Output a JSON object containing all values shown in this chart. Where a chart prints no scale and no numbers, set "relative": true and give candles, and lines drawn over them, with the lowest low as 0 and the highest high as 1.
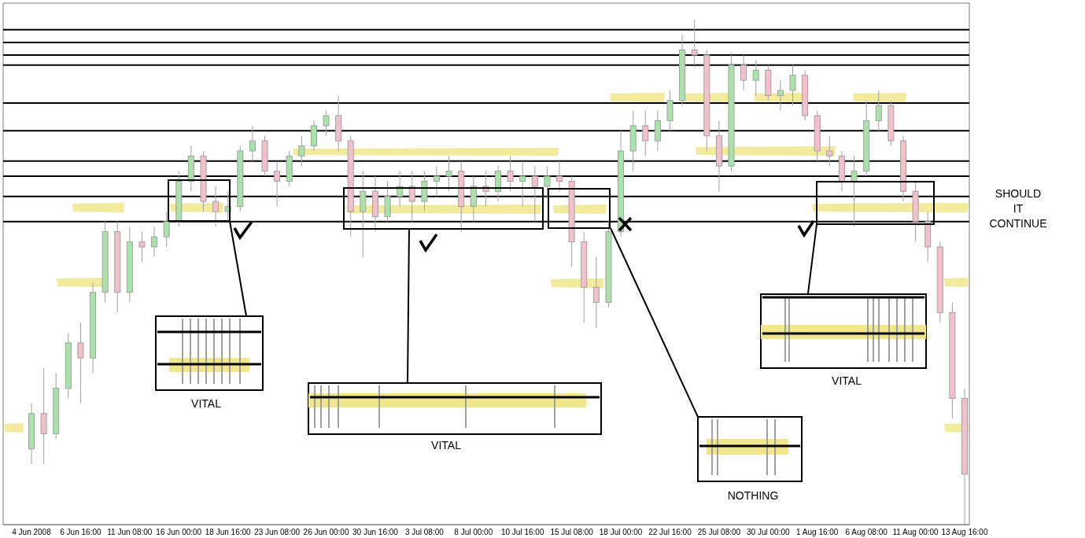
{
  "chart_data": {
    "type": "candlestick",
    "relative": true,
    "categories": [
      "4 Jun 2008",
      null,
      null,
      null,
      "6 Jun 16:00",
      null,
      null,
      null,
      "11 Jun 08:00",
      null,
      null,
      null,
      "16 Jun 00:00",
      null,
      null,
      null,
      "18 Jun 16:00",
      null,
      null,
      null,
      "23 Jun 08:00",
      null,
      null,
      null,
      "26 Jun 00:00",
      null,
      null,
      null,
      "30 Jun 16:00",
      null,
      null,
      null,
      "3 Jul 08:00",
      null,
      null,
      null,
      "8 Jul 00:00",
      null,
      null,
      null,
      "10 Jul 16:00",
      null,
      null,
      null,
      "15 Jul 08:00",
      null,
      null,
      null,
      "18 Jul 00:00",
      null,
      null,
      null,
      "22 Jul 16:00",
      null,
      null,
      null,
      "25 Jul 08:00",
      null,
      null,
      null,
      "30 Jul 00:00",
      null,
      null,
      null,
      "1 Aug 16:00",
      null,
      null,
      null,
      "6 Aug 08:00",
      null,
      null,
      null,
      "11 Aug 00:00",
      null,
      null,
      null,
      "13 Aug 16:00"
    ],
    "ohlc": [
      [
        0.15,
        0.24,
        0.12,
        0.22
      ],
      [
        0.22,
        0.31,
        0.12,
        0.18
      ],
      [
        0.18,
        0.3,
        0.17,
        0.27
      ],
      [
        0.27,
        0.38,
        0.25,
        0.36
      ],
      [
        0.36,
        0.4,
        0.24,
        0.33
      ],
      [
        0.33,
        0.48,
        0.3,
        0.46
      ],
      [
        0.46,
        0.6,
        0.44,
        0.58
      ],
      [
        0.58,
        0.6,
        0.42,
        0.46
      ],
      [
        0.46,
        0.59,
        0.44,
        0.56
      ],
      [
        0.56,
        0.58,
        0.52,
        0.55
      ],
      [
        0.55,
        0.59,
        0.53,
        0.57
      ],
      [
        0.57,
        0.62,
        0.55,
        0.6
      ],
      [
        0.6,
        0.7,
        0.59,
        0.68
      ],
      [
        0.68,
        0.75,
        0.66,
        0.73
      ],
      [
        0.73,
        0.74,
        0.62,
        0.64
      ],
      [
        0.64,
        0.67,
        0.59,
        0.62
      ],
      [
        0.62,
        0.66,
        0.6,
        0.63
      ],
      [
        0.63,
        0.75,
        0.62,
        0.74
      ],
      [
        0.74,
        0.79,
        0.72,
        0.76
      ],
      [
        0.76,
        0.77,
        0.69,
        0.7
      ],
      [
        0.7,
        0.72,
        0.63,
        0.68
      ],
      [
        0.68,
        0.74,
        0.67,
        0.73
      ],
      [
        0.73,
        0.77,
        0.71,
        0.75
      ],
      [
        0.75,
        0.8,
        0.74,
        0.79
      ],
      [
        0.79,
        0.82,
        0.77,
        0.81
      ],
      [
        0.81,
        0.85,
        0.74,
        0.76
      ],
      [
        0.76,
        0.77,
        0.57,
        0.62
      ],
      [
        0.62,
        0.7,
        0.53,
        0.66
      ],
      [
        0.66,
        0.69,
        0.58,
        0.61
      ],
      [
        0.61,
        0.68,
        0.6,
        0.65
      ],
      [
        0.65,
        0.7,
        0.63,
        0.67
      ],
      [
        0.67,
        0.7,
        0.6,
        0.64
      ],
      [
        0.64,
        0.7,
        0.62,
        0.68
      ],
      [
        0.68,
        0.71,
        0.65,
        0.69
      ],
      [
        0.69,
        0.73,
        0.66,
        0.7
      ],
      [
        0.7,
        0.72,
        0.58,
        0.63
      ],
      [
        0.63,
        0.69,
        0.6,
        0.67
      ],
      [
        0.67,
        0.7,
        0.63,
        0.66
      ],
      [
        0.66,
        0.71,
        0.64,
        0.7
      ],
      [
        0.7,
        0.73,
        0.66,
        0.68
      ],
      [
        0.68,
        0.72,
        0.63,
        0.69
      ],
      [
        0.69,
        0.71,
        0.6,
        0.67
      ],
      [
        0.67,
        0.71,
        0.65,
        0.69
      ],
      [
        0.69,
        0.72,
        0.66,
        0.68
      ],
      [
        0.68,
        0.69,
        0.51,
        0.56
      ],
      [
        0.56,
        0.58,
        0.4,
        0.47
      ],
      [
        0.47,
        0.53,
        0.39,
        0.44
      ],
      [
        0.44,
        0.6,
        0.43,
        0.58
      ],
      [
        0.58,
        0.78,
        0.57,
        0.74
      ],
      [
        0.74,
        0.82,
        0.7,
        0.79
      ],
      [
        0.79,
        0.82,
        0.73,
        0.76
      ],
      [
        0.76,
        0.82,
        0.74,
        0.8
      ],
      [
        0.8,
        0.86,
        0.78,
        0.84
      ],
      [
        0.84,
        0.97,
        0.83,
        0.94
      ],
      [
        0.94,
        1.0,
        0.91,
        0.93
      ],
      [
        0.93,
        0.94,
        0.74,
        0.77
      ],
      [
        0.77,
        0.8,
        0.66,
        0.71
      ],
      [
        0.71,
        0.93,
        0.7,
        0.91
      ],
      [
        0.91,
        0.93,
        0.86,
        0.88
      ],
      [
        0.88,
        0.92,
        0.85,
        0.9
      ],
      [
        0.9,
        0.91,
        0.84,
        0.85
      ],
      [
        0.85,
        0.88,
        0.82,
        0.86
      ],
      [
        0.86,
        0.91,
        0.83,
        0.89
      ],
      [
        0.89,
        0.9,
        0.8,
        0.81
      ],
      [
        0.81,
        0.82,
        0.72,
        0.74
      ],
      [
        0.74,
        0.77,
        0.71,
        0.73
      ],
      [
        0.73,
        0.74,
        0.66,
        0.68
      ],
      [
        0.68,
        0.73,
        0.59,
        0.7
      ],
      [
        0.7,
        0.84,
        0.69,
        0.8
      ],
      [
        0.8,
        0.86,
        0.78,
        0.83
      ],
      [
        0.83,
        0.84,
        0.75,
        0.76
      ],
      [
        0.76,
        0.77,
        0.64,
        0.66
      ],
      [
        0.66,
        0.68,
        0.56,
        0.6
      ],
      [
        0.6,
        0.62,
        0.52,
        0.55
      ],
      [
        0.55,
        0.56,
        0.4,
        0.42
      ],
      [
        0.42,
        0.44,
        0.21,
        0.25
      ],
      [
        0.25,
        0.27,
        0.0,
        0.1
      ]
    ],
    "ref_lines": [
      {
        "axis": "y",
        "value": 0.98,
        "color": "#000000"
      },
      {
        "axis": "y",
        "value": 0.955,
        "color": "#000000"
      },
      {
        "axis": "y",
        "value": 0.93,
        "color": "#000000"
      },
      {
        "axis": "y",
        "value": 0.91,
        "color": "#000000"
      },
      {
        "axis": "y",
        "value": 0.835,
        "color": "#000000"
      },
      {
        "axis": "y",
        "value": 0.78,
        "color": "#000000"
      },
      {
        "axis": "y",
        "value": 0.72,
        "color": "#000000"
      },
      {
        "axis": "y",
        "value": 0.69,
        "color": "#000000"
      },
      {
        "axis": "y",
        "value": 0.65,
        "color": "#000000"
      },
      {
        "axis": "y",
        "value": 0.6,
        "color": "#000000"
      }
    ],
    "annotations": [
      "VITAL",
      "VITAL",
      "NOTHING",
      "VITAL",
      "SHOULD IT CONTINUE"
    ],
    "grid": false
  }
}
